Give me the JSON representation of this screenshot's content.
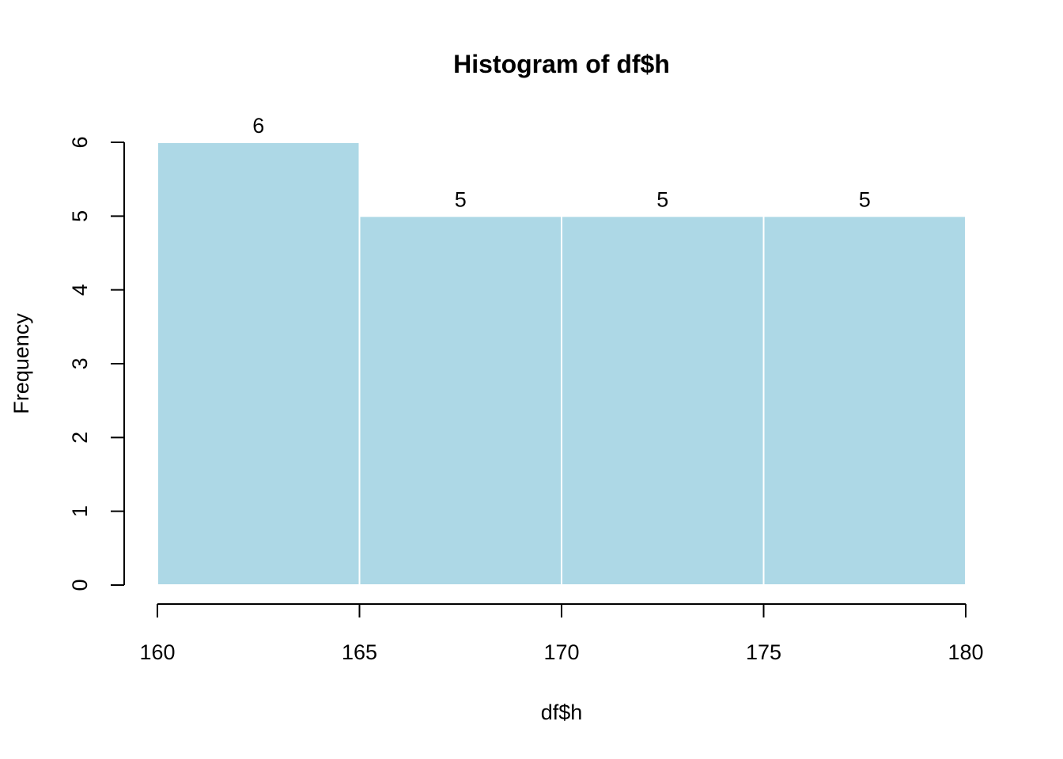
{
  "chart_data": {
    "type": "bar",
    "title": "Histogram of df$h",
    "xlabel": "df$h",
    "ylabel": "Frequency",
    "bins": [
      {
        "start": 160,
        "end": 165,
        "count": 6,
        "label": "6"
      },
      {
        "start": 165,
        "end": 170,
        "count": 5,
        "label": "5"
      },
      {
        "start": 170,
        "end": 175,
        "count": 5,
        "label": "5"
      },
      {
        "start": 175,
        "end": 180,
        "count": 5,
        "label": "5"
      }
    ],
    "xlim": [
      160,
      180
    ],
    "ylim": [
      0,
      6
    ],
    "xticks": [
      160,
      165,
      170,
      175,
      180
    ],
    "yticks": [
      0,
      1,
      2,
      3,
      4,
      5,
      6
    ],
    "bar_color": "#add8e6",
    "bar_border_color": "#ffffff",
    "grid": false,
    "legend": "none"
  }
}
